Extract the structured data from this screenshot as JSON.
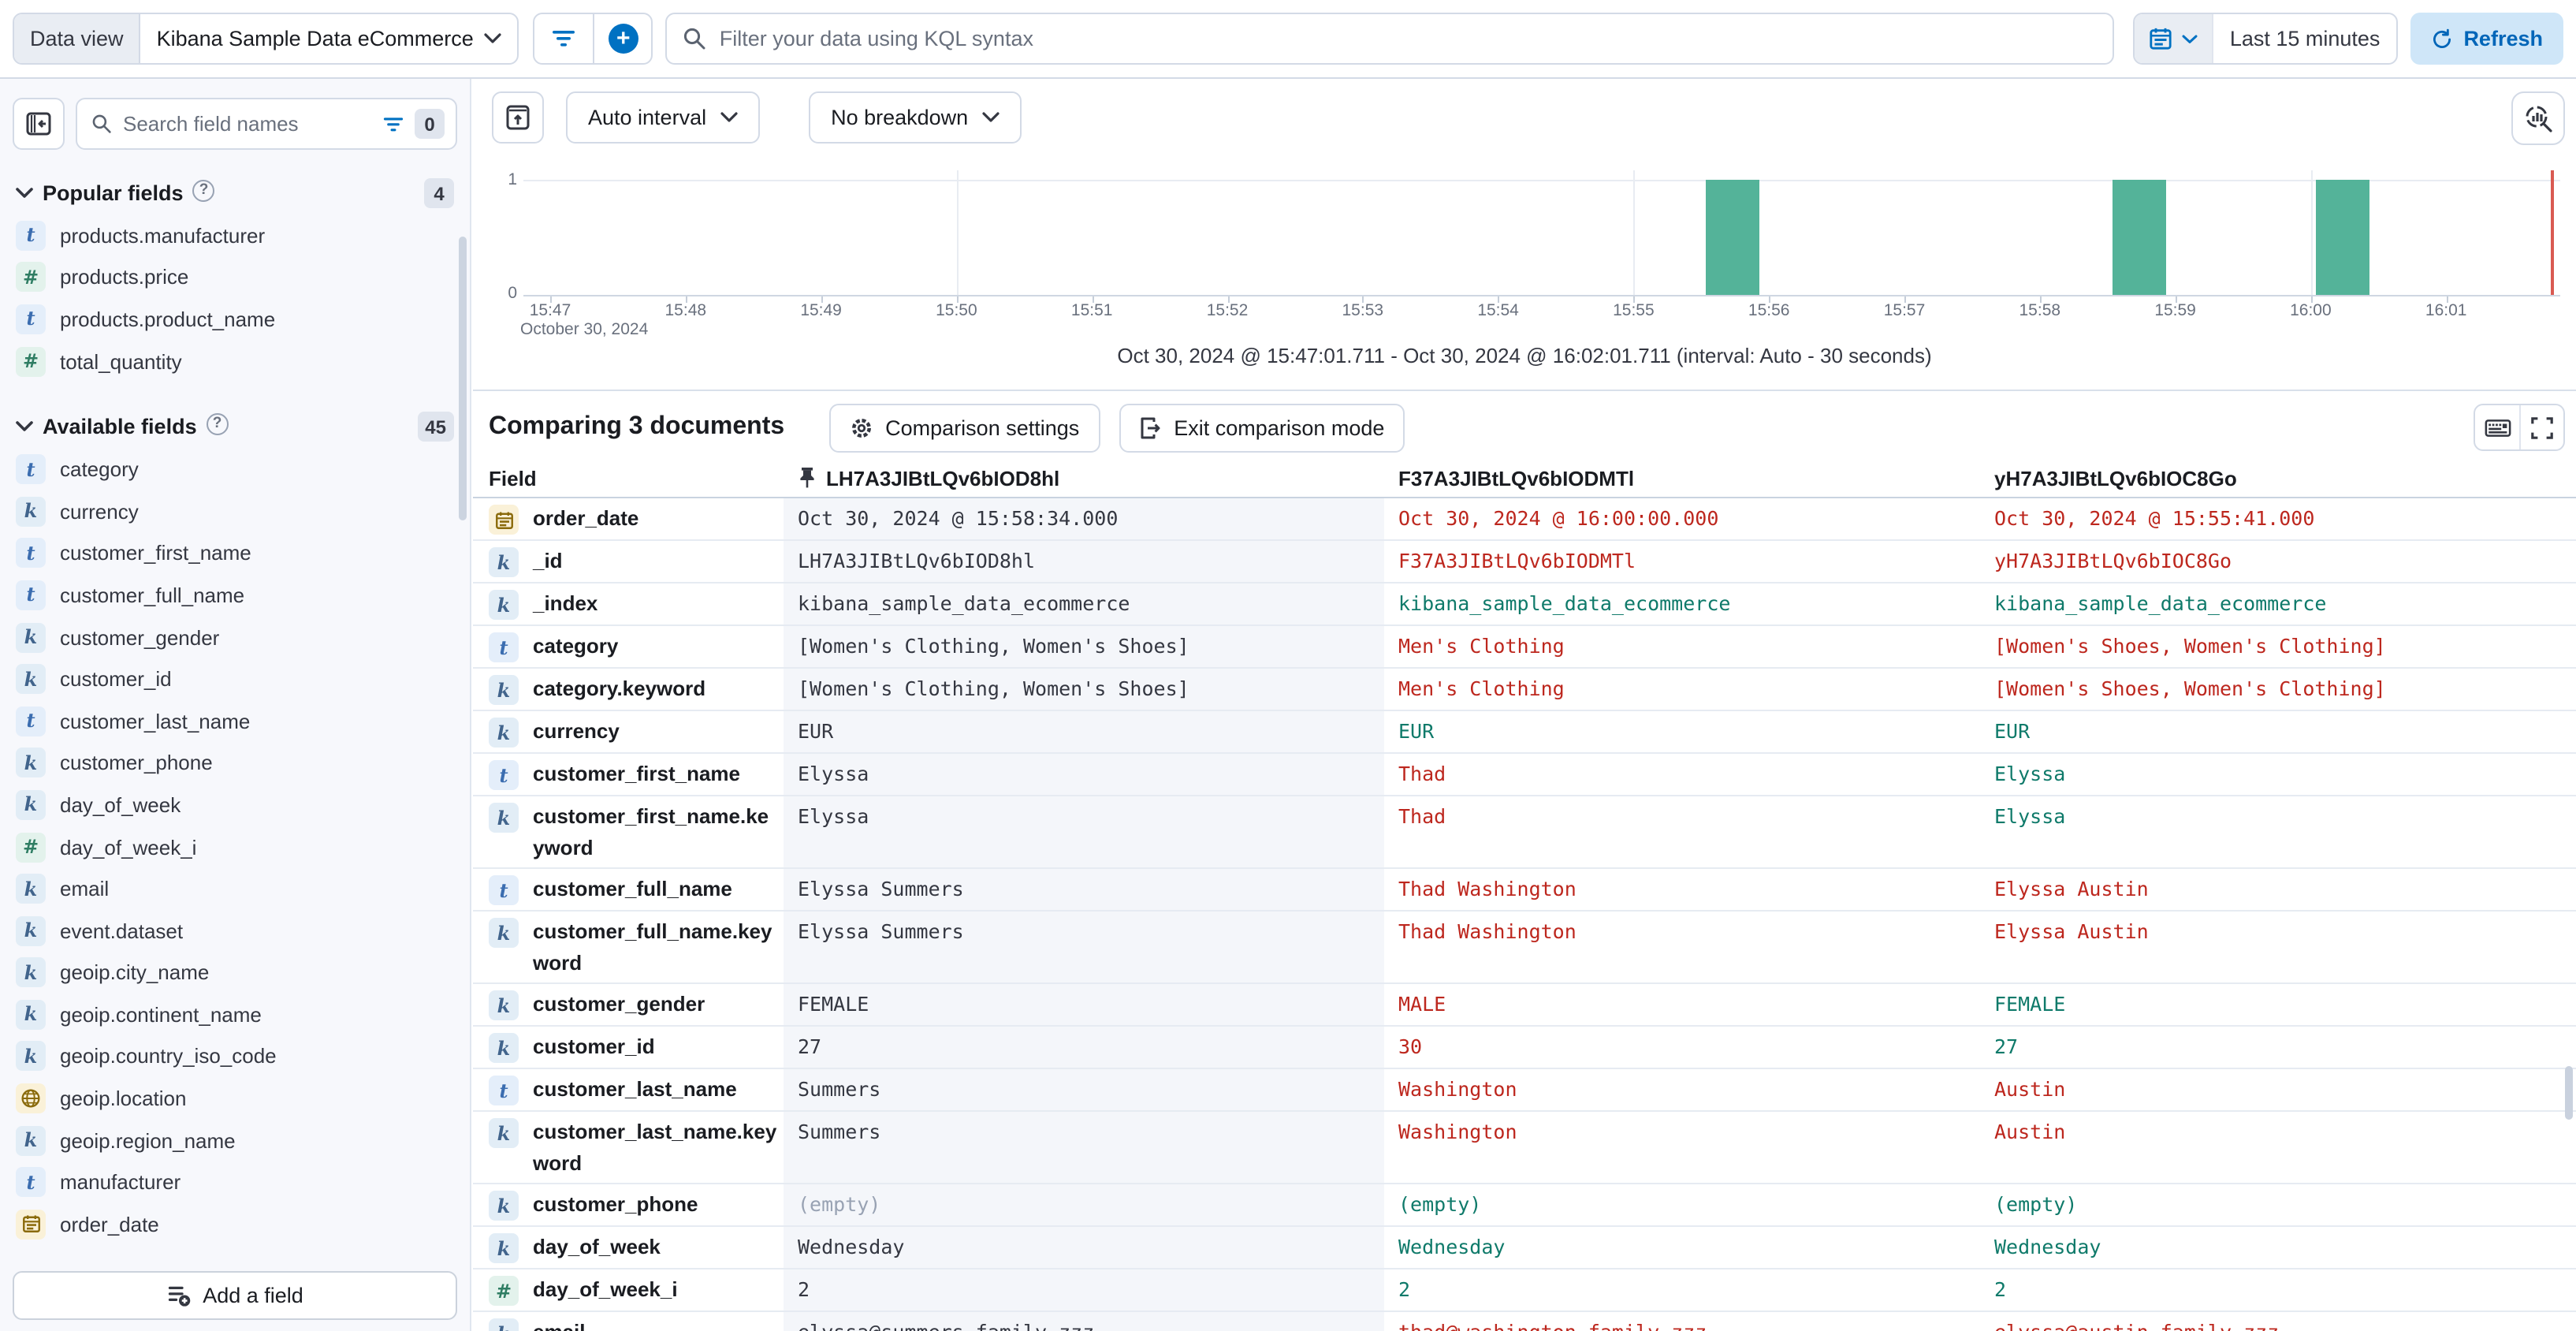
{
  "topbar": {
    "data_view_label": "Data view",
    "data_view_value": "Kibana Sample Data eCommerce",
    "search_placeholder": "Filter your data using KQL syntax",
    "time_range": "Last 15 minutes",
    "refresh_label": "Refresh"
  },
  "sidebar": {
    "search_placeholder": "Search field names",
    "filter_count": "0",
    "sections": [
      {
        "title": "Popular fields",
        "count": "4",
        "items": [
          {
            "icon": "text",
            "label": "products.manufacturer"
          },
          {
            "icon": "number",
            "label": "products.price"
          },
          {
            "icon": "text",
            "label": "products.product_name"
          },
          {
            "icon": "number",
            "label": "total_quantity"
          }
        ]
      },
      {
        "title": "Available fields",
        "count": "45",
        "items": [
          {
            "icon": "text",
            "label": "category"
          },
          {
            "icon": "keyword",
            "label": "currency"
          },
          {
            "icon": "text",
            "label": "customer_first_name"
          },
          {
            "icon": "text",
            "label": "customer_full_name"
          },
          {
            "icon": "keyword",
            "label": "customer_gender"
          },
          {
            "icon": "keyword",
            "label": "customer_id"
          },
          {
            "icon": "text",
            "label": "customer_last_name"
          },
          {
            "icon": "keyword",
            "label": "customer_phone"
          },
          {
            "icon": "keyword",
            "label": "day_of_week"
          },
          {
            "icon": "number",
            "label": "day_of_week_i"
          },
          {
            "icon": "keyword",
            "label": "email"
          },
          {
            "icon": "keyword",
            "label": "event.dataset"
          },
          {
            "icon": "keyword",
            "label": "geoip.city_name"
          },
          {
            "icon": "keyword",
            "label": "geoip.continent_name"
          },
          {
            "icon": "keyword",
            "label": "geoip.country_iso_code"
          },
          {
            "icon": "geo",
            "label": "geoip.location"
          },
          {
            "icon": "keyword",
            "label": "geoip.region_name"
          },
          {
            "icon": "text",
            "label": "manufacturer"
          },
          {
            "icon": "date",
            "label": "order_date"
          }
        ]
      }
    ],
    "add_field_label": "Add a field"
  },
  "histogram": {
    "interval_label": "Auto interval",
    "breakdown_label": "No breakdown",
    "footer": "Oct 30, 2024 @ 15:47:01.711 - Oct 30, 2024 @ 16:02:01.711 (interval: Auto - 30 seconds)",
    "chart_data": {
      "type": "bar",
      "x": [
        "15:55:30",
        "15:58:30",
        "16:00:00"
      ],
      "values": [
        1,
        1,
        1
      ],
      "interval": "30 seconds",
      "x_domain": [
        "15:47:01.711",
        "16:02:01.711"
      ],
      "x_ticks": [
        "15:47",
        "15:48",
        "15:49",
        "15:50",
        "15:51",
        "15:52",
        "15:53",
        "15:54",
        "15:55",
        "15:56",
        "15:57",
        "15:58",
        "15:59",
        "16:00",
        "16:01"
      ],
      "x_context_label": "October 30, 2024",
      "y_ticks": [
        "1",
        "0"
      ],
      "ylim": [
        0,
        1
      ],
      "grid": true,
      "bar_color": "#54b399",
      "end_marker_color": "#d95a52"
    }
  },
  "comparison": {
    "title": "Comparing 3 documents",
    "settings_label": "Comparison settings",
    "exit_label": "Exit comparison mode",
    "table": {
      "field_header": "Field",
      "doc_headers": [
        "LH7A3JIBtLQv6bIOD8hl",
        "F37A3JIBtLQv6bIODMTl",
        "yH7A3JIBtLQv6bIOC8Go"
      ],
      "rows": [
        {
          "field": "order_date",
          "icon": "date",
          "cells": [
            {
              "t": "Oct 30, 2024 @ 15:58:34.000",
              "c": "base"
            },
            {
              "t": "Oct 30, 2024 @ 16:00:00.000",
              "c": "red"
            },
            {
              "t": "Oct 30, 2024 @ 15:55:41.000",
              "c": "red"
            }
          ]
        },
        {
          "field": "_id",
          "icon": "keyword",
          "cells": [
            {
              "t": "LH7A3JIBtLQv6bIOD8hl",
              "c": "base"
            },
            {
              "t": "F37A3JIBtLQv6bIODMTl",
              "c": "red"
            },
            {
              "t": "yH7A3JIBtLQv6bIOC8Go",
              "c": "red"
            }
          ]
        },
        {
          "field": "_index",
          "icon": "keyword",
          "cells": [
            {
              "t": "kibana_sample_data_ecommerce",
              "c": "base"
            },
            {
              "t": "kibana_sample_data_ecommerce",
              "c": "teal"
            },
            {
              "t": "kibana_sample_data_ecommerce",
              "c": "teal"
            }
          ]
        },
        {
          "field": "category",
          "icon": "text",
          "cells": [
            {
              "t": "[Women's Clothing, Women's Shoes]",
              "c": "base"
            },
            {
              "t": "Men's Clothing",
              "c": "red"
            },
            {
              "t": "[Women's Shoes, Women's Clothing]",
              "c": "red"
            }
          ]
        },
        {
          "field": "category.keyword",
          "icon": "keyword",
          "cells": [
            {
              "t": "[Women's Clothing, Women's Shoes]",
              "c": "base"
            },
            {
              "t": "Men's Clothing",
              "c": "red"
            },
            {
              "t": "[Women's Shoes, Women's Clothing]",
              "c": "red"
            }
          ]
        },
        {
          "field": "currency",
          "icon": "keyword",
          "cells": [
            {
              "t": "EUR",
              "c": "base"
            },
            {
              "t": "EUR",
              "c": "teal"
            },
            {
              "t": "EUR",
              "c": "teal"
            }
          ]
        },
        {
          "field": "customer_first_name",
          "icon": "text",
          "cells": [
            {
              "t": "Elyssa",
              "c": "base"
            },
            {
              "t": "Thad",
              "c": "red"
            },
            {
              "t": "Elyssa",
              "c": "teal"
            }
          ]
        },
        {
          "field": "customer_first_name.keyword",
          "icon": "keyword",
          "tall": true,
          "cells": [
            {
              "t": "Elyssa",
              "c": "base"
            },
            {
              "t": "Thad",
              "c": "red"
            },
            {
              "t": "Elyssa",
              "c": "teal"
            }
          ]
        },
        {
          "field": "customer_full_name",
          "icon": "text",
          "cells": [
            {
              "t": "Elyssa Summers",
              "c": "base"
            },
            {
              "t": "Thad Washington",
              "c": "red"
            },
            {
              "t": "Elyssa Austin",
              "c": "red"
            }
          ]
        },
        {
          "field": "customer_full_name.keyword",
          "icon": "keyword",
          "tall": true,
          "cells": [
            {
              "t": "Elyssa Summers",
              "c": "base"
            },
            {
              "t": "Thad Washington",
              "c": "red"
            },
            {
              "t": "Elyssa Austin",
              "c": "red"
            }
          ]
        },
        {
          "field": "customer_gender",
          "icon": "keyword",
          "cells": [
            {
              "t": "FEMALE",
              "c": "base"
            },
            {
              "t": "MALE",
              "c": "red"
            },
            {
              "t": "FEMALE",
              "c": "teal"
            }
          ]
        },
        {
          "field": "customer_id",
          "icon": "keyword",
          "cells": [
            {
              "t": "27",
              "c": "base"
            },
            {
              "t": "30",
              "c": "red"
            },
            {
              "t": "27",
              "c": "teal"
            }
          ]
        },
        {
          "field": "customer_last_name",
          "icon": "text",
          "cells": [
            {
              "t": "Summers",
              "c": "base"
            },
            {
              "t": "Washington",
              "c": "red"
            },
            {
              "t": "Austin",
              "c": "red"
            }
          ]
        },
        {
          "field": "customer_last_name.keyword",
          "icon": "keyword",
          "tall": true,
          "cells": [
            {
              "t": "Summers",
              "c": "base"
            },
            {
              "t": "Washington",
              "c": "red"
            },
            {
              "t": "Austin",
              "c": "red"
            }
          ]
        },
        {
          "field": "customer_phone",
          "icon": "keyword",
          "cells": [
            {
              "t": "(empty)",
              "c": "muted"
            },
            {
              "t": "(empty)",
              "c": "teal"
            },
            {
              "t": "(empty)",
              "c": "teal"
            }
          ]
        },
        {
          "field": "day_of_week",
          "icon": "keyword",
          "cells": [
            {
              "t": "Wednesday",
              "c": "base"
            },
            {
              "t": "Wednesday",
              "c": "teal"
            },
            {
              "t": "Wednesday",
              "c": "teal"
            }
          ]
        },
        {
          "field": "day_of_week_i",
          "icon": "number",
          "cells": [
            {
              "t": "2",
              "c": "base"
            },
            {
              "t": "2",
              "c": "teal"
            },
            {
              "t": "2",
              "c": "teal"
            }
          ]
        },
        {
          "field": "email",
          "icon": "keyword",
          "cells": [
            {
              "t": "elyssa@summers-family.zzz",
              "c": "base"
            },
            {
              "t": "thad@washington-family.zzz",
              "c": "red"
            },
            {
              "t": "elyssa@austin-family.zzz",
              "c": "red"
            }
          ]
        }
      ]
    }
  },
  "colors": {
    "primary": "#0071c2",
    "bar": "#54b399",
    "diff": "#bd271e",
    "match": "#0f7a6a",
    "time_marker": "#d95a52"
  }
}
